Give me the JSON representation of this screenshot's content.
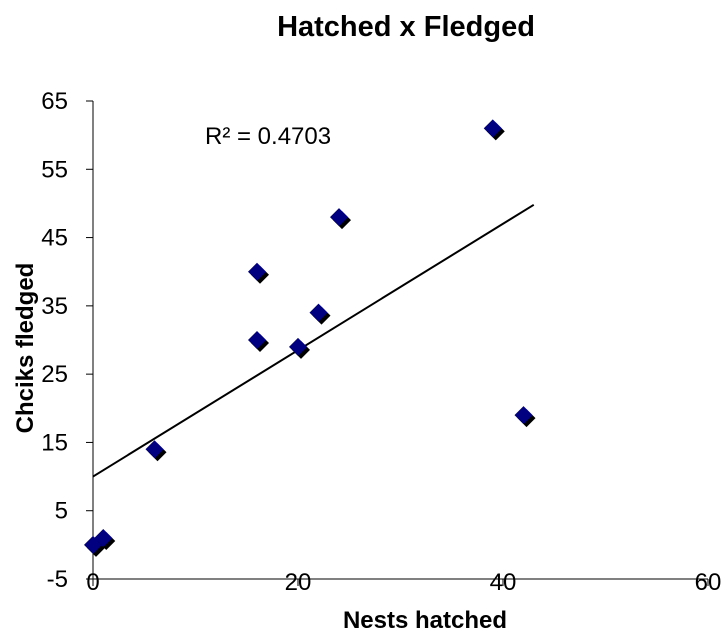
{
  "chart_data": {
    "type": "scatter",
    "title": "Hatched x Fledged",
    "xlabel": "Nests hatched",
    "ylabel": "Chciks fledged",
    "xlim": [
      0,
      60
    ],
    "ylim": [
      -5,
      65
    ],
    "xticks": [
      0,
      20,
      40,
      60
    ],
    "xtick_labels": [
      "0",
      "20",
      "40",
      "60"
    ],
    "yticks": [
      -5,
      5,
      15,
      25,
      35,
      45,
      55,
      65
    ],
    "ytick_labels": [
      "-5",
      "5",
      "15",
      "25",
      "35",
      "45",
      "55",
      "65"
    ],
    "grid": false,
    "legend": "none",
    "marker": "diamond",
    "marker_color": "#000080",
    "marker_shadow_color": "#000000",
    "series": [
      {
        "x": [
          0,
          1,
          6,
          16,
          16,
          20,
          22,
          24,
          39,
          42
        ],
        "y": [
          0,
          1,
          14,
          40,
          30,
          29,
          34,
          48,
          61,
          19
        ]
      }
    ],
    "trendline": {
      "x": [
        0,
        43
      ],
      "y": [
        10,
        49.8
      ],
      "color": "#000000"
    },
    "annotation": "R² = 0.4703"
  }
}
